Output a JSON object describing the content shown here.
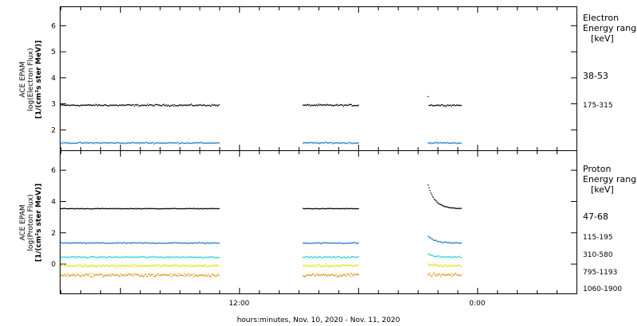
{
  "x_axis": {
    "label": "hours:minutes, Nov. 10, 2020 - Nov. 11, 2020",
    "range_hours": [
      3,
      29
    ],
    "tick_labels": [
      {
        "hour": 12,
        "label": "12:00"
      },
      {
        "hour": 24,
        "label": "0:00"
      }
    ]
  },
  "chart_data": [
    {
      "type": "scatter",
      "panel": "electron",
      "ylabel_lines": [
        "ACE EPAM",
        "log(Electron Flux)",
        "[1/(cm²s ster MeV)]"
      ],
      "ylim": [
        1.2,
        6.7
      ],
      "yticks": [
        2,
        3,
        4,
        5,
        6
      ],
      "legend_title": [
        "Electron",
        "Energy ranges"
      ],
      "legend_unit": "[keV]",
      "data_gaps_hours": [
        [
          6.5,
          8.0
        ],
        [
          19.0,
          20.5
        ],
        [
          27.0,
          29.0
        ]
      ],
      "series": [
        {
          "name": "38-53",
          "color": "#000000",
          "mean": 2.95,
          "noise": 0.05,
          "segments": [
            [
              3.0,
              6.3
            ],
            [
              20.3,
              23.7
            ],
            [
              28.2,
              30.4
            ]
          ]
        },
        {
          "name": "175-315",
          "color": "#1a78d0",
          "mean": 1.5,
          "noise": 0.04,
          "segments": [
            [
              3.0,
              6.3
            ],
            [
              20.3,
              23.7
            ],
            [
              28.2,
              30.4
            ]
          ]
        }
      ]
    },
    {
      "type": "scatter",
      "panel": "proton",
      "ylabel_lines": [
        "ACE EPAM",
        "log(Proton Flux)",
        "[1/(cm²s ster MeV)]"
      ],
      "ylim": [
        -1.9,
        7.2
      ],
      "yticks": [
        0,
        2,
        4,
        6
      ],
      "legend_title": [
        "Proton",
        "Energy ranges"
      ],
      "legend_unit": "[keV]",
      "series": [
        {
          "name": "47-68",
          "color": "#000000",
          "mean": 3.55,
          "noise": 0.03
        },
        {
          "name": "115-195",
          "color": "#1a78d0",
          "mean": 1.35,
          "noise": 0.06
        },
        {
          "name": "310-580",
          "color": "#20d0d0",
          "mean": 0.45,
          "noise": 0.07
        },
        {
          "name": "795-1193",
          "color": "#e0e000",
          "mean": -0.1,
          "noise": 0.12
        },
        {
          "name": "1060-1900",
          "color": "#e08a00",
          "mean": -0.7,
          "noise": 0.15
        }
      ]
    }
  ]
}
